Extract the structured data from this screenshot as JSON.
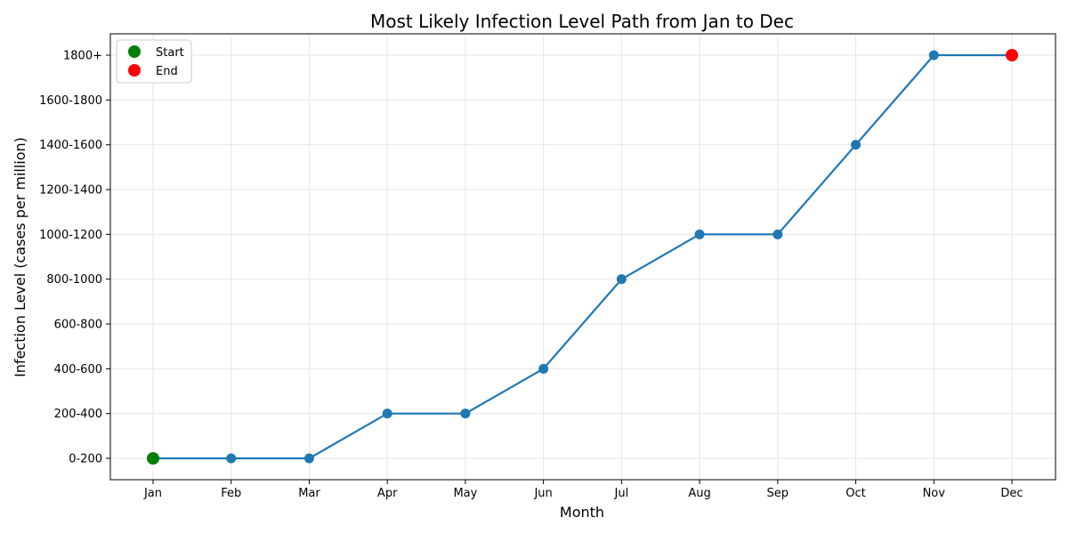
{
  "chart_data": {
    "type": "line",
    "title": "Most Likely Infection Level Path from Jan to Dec",
    "xlabel": "Month",
    "ylabel": "Infection Level (cases per million)",
    "categories": [
      "Jan",
      "Feb",
      "Mar",
      "Apr",
      "May",
      "Jun",
      "Jul",
      "Aug",
      "Sep",
      "Oct",
      "Nov",
      "Dec"
    ],
    "y_levels": [
      "0-200",
      "200-400",
      "400-600",
      "600-800",
      "800-1000",
      "1000-1200",
      "1200-1400",
      "1400-1600",
      "1600-1800",
      "1800+"
    ],
    "series": [
      {
        "values": [
          "0-200",
          "0-200",
          "0-200",
          "200-400",
          "200-400",
          "400-600",
          "800-1000",
          "1000-1200",
          "1000-1200",
          "1400-1600",
          "1800+",
          "1800+"
        ],
        "color": "#1f77b4"
      }
    ],
    "markers": {
      "start": {
        "label": "Start",
        "category": "Jan",
        "value": "0-200",
        "color": "#008000"
      },
      "end": {
        "label": "End",
        "category": "Dec",
        "value": "1800+",
        "color": "#ff0000"
      }
    },
    "legend": {
      "position": "top-left",
      "entries": [
        "Start",
        "End"
      ]
    },
    "grid": true
  }
}
